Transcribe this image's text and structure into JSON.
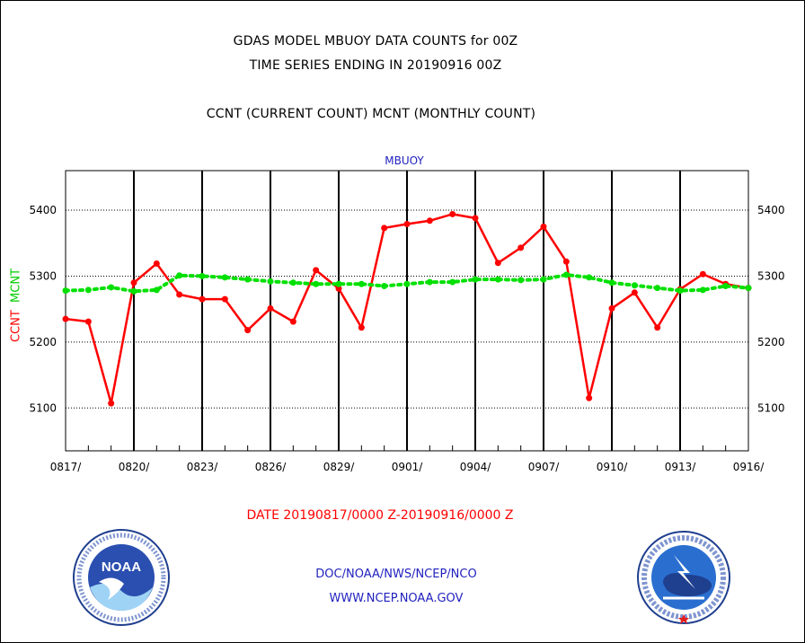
{
  "titles": {
    "line1": "GDAS MODEL MBUOY DATA COUNTS for 00Z",
    "line2": "TIME SERIES ENDING IN 20190916 00Z",
    "line3": "CCNT (CURRENT COUNT) MCNT (MONTHLY COUNT)"
  },
  "series_label": "MBUOY",
  "ylabel": {
    "ccnt": "CCNT",
    "mcnt": "MCNT"
  },
  "date_range": "DATE 20190817/0000 Z-20190916/0000 Z",
  "footer": {
    "org": "DOC/NOAA/NWS/NCEP/NCO",
    "url": "WWW.NCEP.NOAA.GOV"
  },
  "logos": {
    "noaa": {
      "name": "noaa-logo",
      "text": "NOAA"
    },
    "nws": {
      "name": "nws-logo"
    }
  },
  "colors": {
    "ccnt": "#ff0000",
    "mcnt": "#00e000",
    "title": "#000000",
    "blue": "#1f1fbf"
  },
  "chart_data": {
    "type": "line",
    "title": "GDAS MODEL MBUOY DATA COUNTS for 00Z",
    "subtitle": "TIME SERIES ENDING IN 20190916 00Z",
    "xlabel": "DATE 20190817/0000 Z-20190916/0000 Z",
    "ylabel": "CCNT MCNT",
    "x_tick_labels": [
      "0817/",
      "0820/",
      "0823/",
      "0826/",
      "0829/",
      "0901/",
      "0904/",
      "0907/",
      "0910/",
      "0913/",
      "0916/"
    ],
    "y_ticks": [
      5100,
      5200,
      5300,
      5400
    ],
    "ylim": [
      5035,
      5460
    ],
    "x_count": 31,
    "grid": true,
    "series": [
      {
        "name": "CCNT",
        "color": "#ff0000",
        "values": [
          5235,
          5231,
          5107,
          5290,
          5319,
          5272,
          5265,
          5265,
          5218,
          5251,
          5231,
          5309,
          5281,
          5222,
          5373,
          5379,
          5384,
          5394,
          5388,
          5320,
          5343,
          5375,
          5322,
          5115,
          5251,
          5275,
          5222,
          5280,
          5303,
          5288,
          5282
        ]
      },
      {
        "name": "MCNT",
        "color": "#00e000",
        "values": [
          5278,
          5279,
          5283,
          5277,
          5279,
          5301,
          5300,
          5298,
          5295,
          5292,
          5290,
          5288,
          5288,
          5288,
          5285,
          5288,
          5291,
          5291,
          5295,
          5295,
          5294,
          5295,
          5302,
          5298,
          5290,
          5286,
          5282,
          5278,
          5279,
          5285,
          5282
        ]
      }
    ]
  }
}
